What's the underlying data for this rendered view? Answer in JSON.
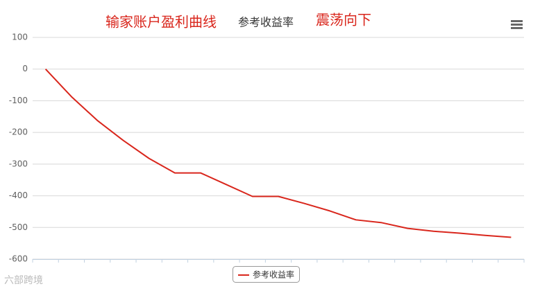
{
  "chart_data": {
    "type": "line",
    "title": "参考收益率",
    "annotations": [
      "输家账户盈利曲线",
      "震荡向下"
    ],
    "watermark": "六部跨境",
    "categories": [
      null,
      null,
      null,
      null,
      null,
      null,
      null,
      null,
      null,
      null,
      null,
      null,
      null,
      null,
      null,
      null,
      null,
      null,
      null
    ],
    "series": [
      {
        "name": "参考收益率",
        "color": "#d9261c",
        "values": [
          0,
          -87,
          -162,
          -225,
          -282,
          -328,
          -328,
          -365,
          -402,
          -402,
          -424,
          -448,
          -476,
          -485,
          -503,
          -512,
          -518,
          -525,
          -531
        ]
      }
    ],
    "ylim": [
      -600,
      100
    ],
    "yticks": [
      -600,
      -500,
      -400,
      -300,
      -200,
      -100,
      0,
      100
    ],
    "grid": true,
    "legend": "bottom"
  }
}
